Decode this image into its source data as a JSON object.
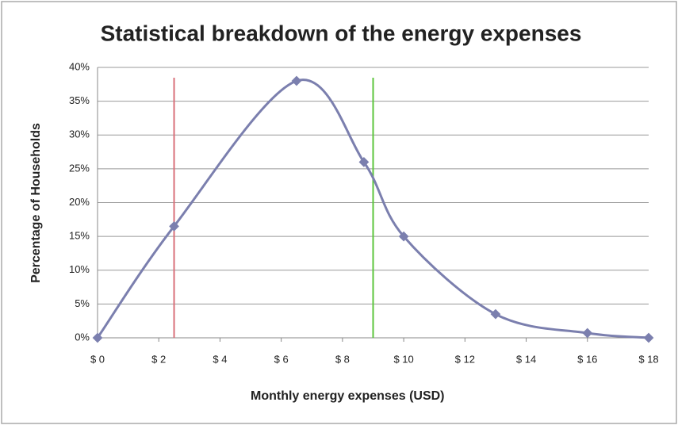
{
  "chart_data": {
    "type": "line",
    "title": "Statistical breakdown of the energy expenses",
    "x_label": "Monthly energy expenses (USD)",
    "y_label": "Percentage of Households",
    "x": [
      0,
      2.5,
      6.5,
      8.7,
      10,
      13,
      16,
      18
    ],
    "series": [
      {
        "name": "Households",
        "color": "#7b7fae",
        "values": [
          0,
          16.5,
          38,
          26,
          15,
          3.5,
          0.7,
          0
        ]
      }
    ],
    "xlim": [
      0,
      18
    ],
    "xticks": [
      {
        "value": 0,
        "label": "$ 0"
      },
      {
        "value": 2,
        "label": "$ 2"
      },
      {
        "value": 4,
        "label": "$ 4"
      },
      {
        "value": 6,
        "label": "$ 6"
      },
      {
        "value": 8,
        "label": "$ 8"
      },
      {
        "value": 10,
        "label": "$ 10"
      },
      {
        "value": 12,
        "label": "$ 12"
      },
      {
        "value": 14,
        "label": "$ 14"
      },
      {
        "value": 16,
        "label": "$ 16"
      },
      {
        "value": 18,
        "label": "$ 18"
      }
    ],
    "ylim": [
      0,
      40
    ],
    "yticks": [
      {
        "value": 0,
        "label": "0%"
      },
      {
        "value": 5,
        "label": "5%"
      },
      {
        "value": 10,
        "label": "10%"
      },
      {
        "value": 15,
        "label": "15%"
      },
      {
        "value": 20,
        "label": "20%"
      },
      {
        "value": 25,
        "label": "25%"
      },
      {
        "value": 30,
        "label": "30%"
      },
      {
        "value": 35,
        "label": "35%"
      },
      {
        "value": 40,
        "label": "40%"
      }
    ],
    "grid": true,
    "reference_lines": [
      {
        "x": 2.5,
        "color": "#d9707a"
      },
      {
        "x": 9,
        "color": "#5cc63c"
      }
    ]
  }
}
